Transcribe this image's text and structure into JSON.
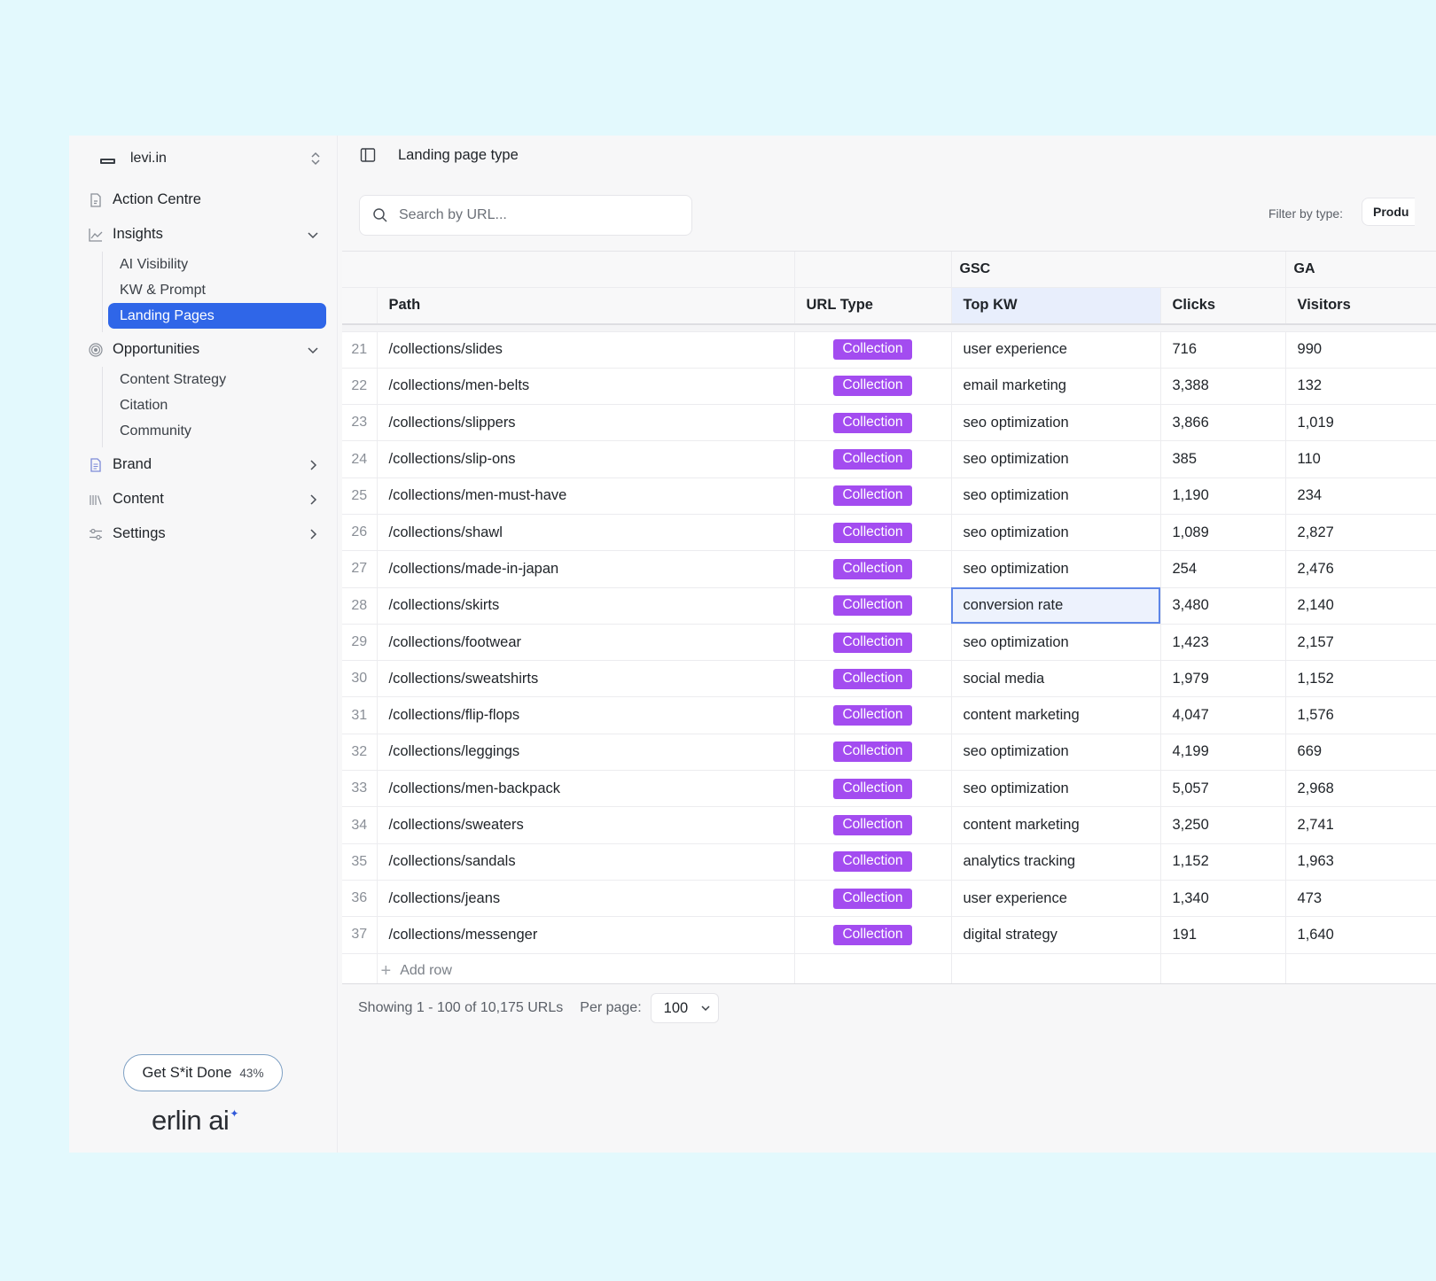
{
  "workspace": {
    "name": "levi.in"
  },
  "nav": {
    "action_centre": "Action Centre",
    "insights": {
      "label": "Insights",
      "items": [
        "AI Visibility",
        "KW & Prompt",
        "Landing Pages"
      ],
      "active": "Landing Pages"
    },
    "opportunities": {
      "label": "Opportunities",
      "items": [
        "Content Strategy",
        "Citation",
        "Community"
      ]
    },
    "brand": "Brand",
    "content": "Content",
    "settings": "Settings"
  },
  "cta": {
    "label": "Get S*it Done",
    "percent": "43%"
  },
  "logo": {
    "text": "erlin ai"
  },
  "header": {
    "title": "Landing page type"
  },
  "search": {
    "placeholder": "Search by URL..."
  },
  "filter": {
    "label": "Filter by type:",
    "value": "Produ"
  },
  "table": {
    "groups": {
      "gsc": "GSC",
      "ga": "GA"
    },
    "columns": {
      "path": "Path",
      "url_type": "URL Type",
      "top_kw": "Top KW",
      "clicks": "Clicks",
      "visitors": "Visitors"
    },
    "rows": [
      {
        "num": "21",
        "path": "/collections/slides",
        "type": "Collection",
        "kw": "user experience",
        "clicks": "716",
        "visitors": "990"
      },
      {
        "num": "22",
        "path": "/collections/men-belts",
        "type": "Collection",
        "kw": "email marketing",
        "clicks": "3,388",
        "visitors": "132"
      },
      {
        "num": "23",
        "path": "/collections/slippers",
        "type": "Collection",
        "kw": "seo optimization",
        "clicks": "3,866",
        "visitors": "1,019"
      },
      {
        "num": "24",
        "path": "/collections/slip-ons",
        "type": "Collection",
        "kw": "seo optimization",
        "clicks": "385",
        "visitors": "110"
      },
      {
        "num": "25",
        "path": "/collections/men-must-have",
        "type": "Collection",
        "kw": "seo optimization",
        "clicks": "1,190",
        "visitors": "234"
      },
      {
        "num": "26",
        "path": "/collections/shawl",
        "type": "Collection",
        "kw": "seo optimization",
        "clicks": "1,089",
        "visitors": "2,827"
      },
      {
        "num": "27",
        "path": "/collections/made-in-japan",
        "type": "Collection",
        "kw": "seo optimization",
        "clicks": "254",
        "visitors": "2,476"
      },
      {
        "num": "28",
        "path": "/collections/skirts",
        "type": "Collection",
        "kw": "conversion rate",
        "clicks": "3,480",
        "visitors": "2,140"
      },
      {
        "num": "29",
        "path": "/collections/footwear",
        "type": "Collection",
        "kw": "seo optimization",
        "clicks": "1,423",
        "visitors": "2,157"
      },
      {
        "num": "30",
        "path": "/collections/sweatshirts",
        "type": "Collection",
        "kw": "social media",
        "clicks": "1,979",
        "visitors": "1,152"
      },
      {
        "num": "31",
        "path": "/collections/flip-flops",
        "type": "Collection",
        "kw": "content marketing",
        "clicks": "4,047",
        "visitors": "1,576"
      },
      {
        "num": "32",
        "path": "/collections/leggings",
        "type": "Collection",
        "kw": "seo optimization",
        "clicks": "4,199",
        "visitors": "669"
      },
      {
        "num": "33",
        "path": "/collections/men-backpack",
        "type": "Collection",
        "kw": "seo optimization",
        "clicks": "5,057",
        "visitors": "2,968"
      },
      {
        "num": "34",
        "path": "/collections/sweaters",
        "type": "Collection",
        "kw": "content marketing",
        "clicks": "3,250",
        "visitors": "2,741"
      },
      {
        "num": "35",
        "path": "/collections/sandals",
        "type": "Collection",
        "kw": "analytics tracking",
        "clicks": "1,152",
        "visitors": "1,963"
      },
      {
        "num": "36",
        "path": "/collections/jeans",
        "type": "Collection",
        "kw": "user experience",
        "clicks": "1,340",
        "visitors": "473"
      },
      {
        "num": "37",
        "path": "/collections/messenger",
        "type": "Collection",
        "kw": "digital strategy",
        "clicks": "191",
        "visitors": "1,640"
      }
    ],
    "selected_cell_row": "28",
    "add_row": "Add row"
  },
  "pagination": {
    "showing": "Showing 1 - 100 of 10,175 URLs",
    "per_page_label": "Per page:",
    "per_page": "100"
  },
  "colors": {
    "accent": "#2f66e8",
    "badge": "#a34cf0",
    "background": "#e3f9fd"
  },
  "icons": {
    "workspace": "workspace-logo-icon",
    "switcher": "chevron-up-down-icon",
    "action_centre": "document-icon",
    "insights": "line-chart-icon",
    "opportunities": "target-icon",
    "brand": "file-icon",
    "content": "library-icon",
    "settings": "sliders-icon",
    "panel": "sidebar-toggle-icon",
    "search": "search-icon"
  }
}
